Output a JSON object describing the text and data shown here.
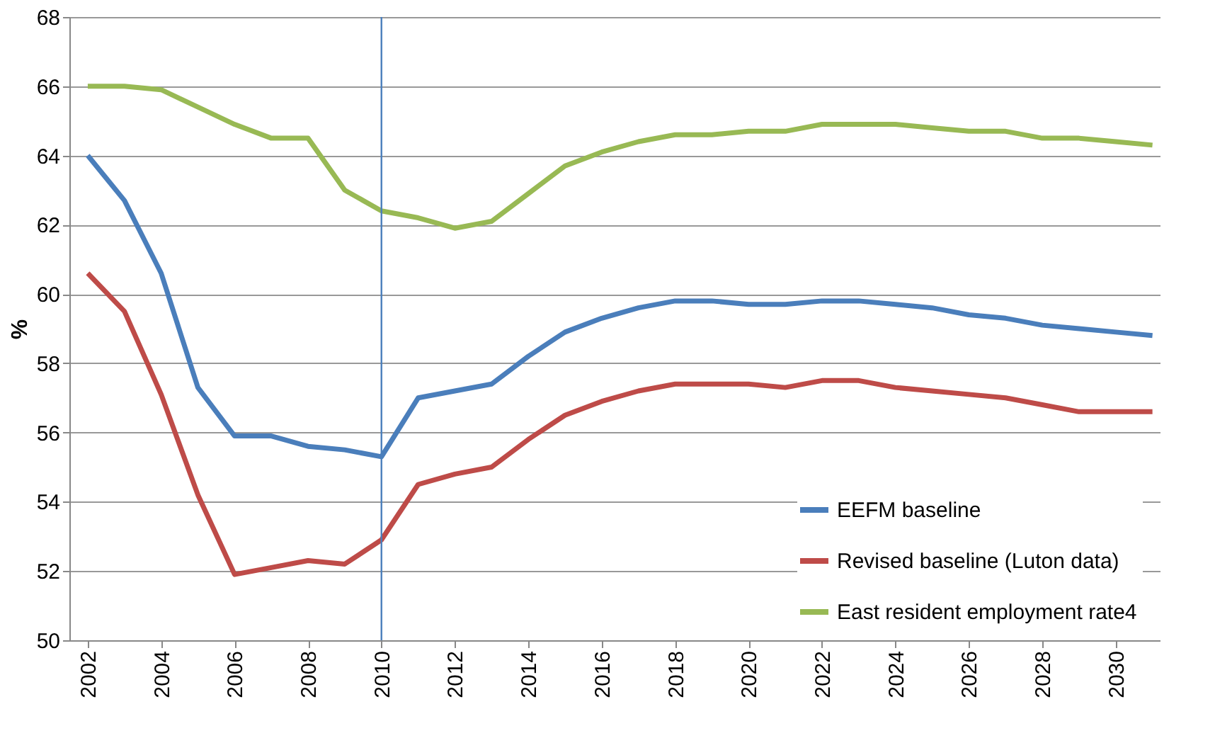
{
  "chart_data": {
    "type": "line",
    "ylabel": "%",
    "x": [
      2002,
      2003,
      2004,
      2005,
      2006,
      2007,
      2008,
      2009,
      2010,
      2011,
      2012,
      2013,
      2014,
      2015,
      2016,
      2017,
      2018,
      2019,
      2020,
      2021,
      2022,
      2023,
      2024,
      2025,
      2026,
      2027,
      2028,
      2029,
      2030,
      2031
    ],
    "series": [
      {
        "name": "EEFM baseline",
        "color": "#4a7ebb",
        "values": [
          64.0,
          62.7,
          60.6,
          57.3,
          55.9,
          55.9,
          55.6,
          55.5,
          55.3,
          57.0,
          57.2,
          57.4,
          58.2,
          58.9,
          59.3,
          59.6,
          59.8,
          59.8,
          59.7,
          59.7,
          59.8,
          59.8,
          59.7,
          59.6,
          59.4,
          59.3,
          59.1,
          59.0,
          58.9,
          58.8
        ]
      },
      {
        "name": "Revised baseline (Luton  data)",
        "color": "#be4b48",
        "values": [
          60.6,
          59.5,
          57.1,
          54.2,
          51.9,
          52.1,
          52.3,
          52.2,
          52.9,
          54.5,
          54.8,
          55.0,
          55.8,
          56.5,
          56.9,
          57.2,
          57.4,
          57.4,
          57.4,
          57.3,
          57.5,
          57.5,
          57.3,
          57.2,
          57.1,
          57.0,
          56.8,
          56.6,
          56.6,
          56.6
        ]
      },
      {
        "name": "East resident employment  rate4",
        "color": "#98b954",
        "values": [
          66.0,
          66.0,
          65.9,
          65.4,
          64.9,
          64.5,
          64.5,
          63.0,
          62.4,
          62.2,
          61.9,
          62.1,
          62.9,
          63.7,
          64.1,
          64.4,
          64.6,
          64.6,
          64.7,
          64.7,
          64.9,
          64.9,
          64.9,
          64.8,
          64.7,
          64.7,
          64.5,
          64.5,
          64.4,
          64.3
        ]
      }
    ],
    "xlim": [
      2001.5,
      2031.2
    ],
    "xticks": [
      2002,
      2004,
      2006,
      2008,
      2010,
      2012,
      2014,
      2016,
      2018,
      2020,
      2022,
      2024,
      2026,
      2028,
      2030
    ],
    "ylim": [
      50,
      68
    ],
    "yticks": [
      50,
      52,
      54,
      56,
      58,
      60,
      62,
      64,
      66,
      68
    ],
    "ref_lines": [
      {
        "axis": "x",
        "value": 2010,
        "color": "#4a7ebb"
      }
    ],
    "grid": "y",
    "legend": "bottom right",
    "marker": "none",
    "line_style": "solid"
  }
}
